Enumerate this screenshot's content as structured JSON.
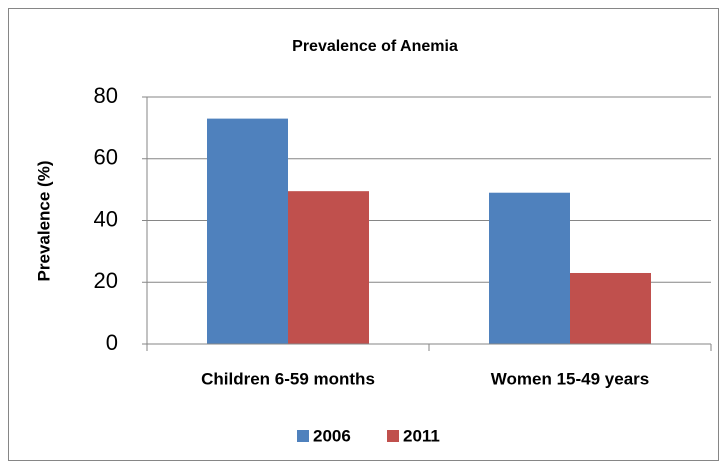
{
  "chart_data": {
    "type": "bar",
    "title": "Prevalence of Anemia",
    "y_label": "Prevalence (%)",
    "categories": [
      "Children 6-59 months",
      "Women 15-49 years"
    ],
    "series": [
      {
        "name": "2006",
        "color": "#4f81bd",
        "values": [
          73,
          49
        ]
      },
      {
        "name": "2011",
        "color": "#c0504d",
        "values": [
          49.5,
          23
        ]
      }
    ],
    "ylim": [
      0,
      80
    ],
    "yticks": [
      0,
      20,
      40,
      60,
      80
    ],
    "grid": true,
    "legend": "bottom"
  }
}
